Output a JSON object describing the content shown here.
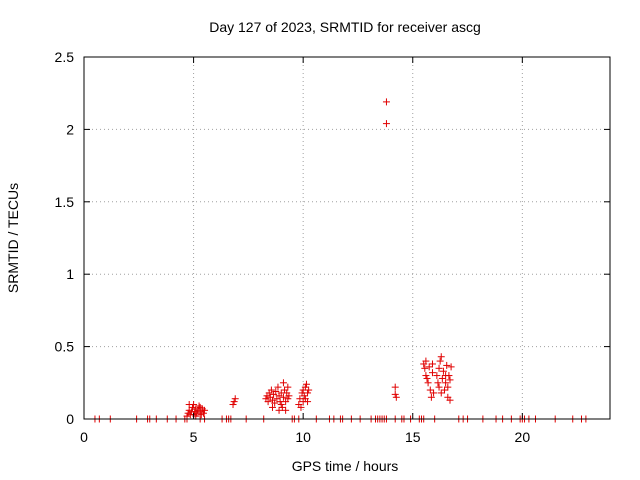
{
  "chart_data": {
    "type": "scatter",
    "title": "Day 127 of 2023, SRMTID for receiver ascg",
    "xlabel": "GPS time / hours",
    "ylabel": "SRMTID / TECUs",
    "xlim": [
      0,
      24
    ],
    "ylim": [
      0,
      2.5
    ],
    "xticks": [
      0,
      5,
      10,
      15,
      20
    ],
    "yticks": [
      0,
      0.5,
      1,
      1.5,
      2,
      2.5
    ],
    "xtick_labels": [
      "0",
      "5",
      "10",
      "15",
      "20"
    ],
    "ytick_labels": [
      "0",
      "0.5",
      "1",
      "1.5",
      "2",
      "2.5"
    ],
    "grid": true,
    "marker": "+",
    "marker_color": "#e00000",
    "series": [
      {
        "name": "SRMTID",
        "points": [
          [
            0.5,
            0
          ],
          [
            0.7,
            0
          ],
          [
            1.2,
            0
          ],
          [
            2.4,
            0
          ],
          [
            2.9,
            0
          ],
          [
            3.0,
            0
          ],
          [
            3.3,
            0
          ],
          [
            3.8,
            0
          ],
          [
            4.2,
            0
          ],
          [
            4.6,
            0
          ],
          [
            4.7,
            0
          ],
          [
            5.3,
            0
          ],
          [
            5.5,
            0
          ],
          [
            6.3,
            0
          ],
          [
            6.5,
            0
          ],
          [
            6.6,
            0
          ],
          [
            6.7,
            0
          ],
          [
            7.4,
            0
          ],
          [
            8.2,
            0
          ],
          [
            9.5,
            0
          ],
          [
            9.6,
            0
          ],
          [
            9.8,
            0
          ],
          [
            10.6,
            0
          ],
          [
            11.2,
            0
          ],
          [
            11.4,
            0
          ],
          [
            11.7,
            0
          ],
          [
            11.8,
            0
          ],
          [
            12.2,
            0
          ],
          [
            12.6,
            0
          ],
          [
            13.1,
            0
          ],
          [
            13.3,
            0
          ],
          [
            13.4,
            0
          ],
          [
            13.5,
            0
          ],
          [
            13.6,
            0
          ],
          [
            13.7,
            0
          ],
          [
            13.8,
            0
          ],
          [
            14.2,
            0
          ],
          [
            14.5,
            0
          ],
          [
            14.6,
            0
          ],
          [
            14.9,
            0
          ],
          [
            15.3,
            0
          ],
          [
            15.4,
            0
          ],
          [
            15.5,
            0
          ],
          [
            16.0,
            0
          ],
          [
            17.1,
            0
          ],
          [
            17.3,
            0
          ],
          [
            17.5,
            0
          ],
          [
            18.2,
            0
          ],
          [
            18.8,
            0
          ],
          [
            19.1,
            0
          ],
          [
            19.5,
            0
          ],
          [
            19.9,
            0
          ],
          [
            20.0,
            0
          ],
          [
            20.1,
            0
          ],
          [
            20.3,
            0
          ],
          [
            20.6,
            0
          ],
          [
            21.5,
            0
          ],
          [
            22.3,
            0
          ],
          [
            22.7,
            0
          ],
          [
            22.9,
            0
          ],
          [
            4.7,
            0.02
          ],
          [
            4.75,
            0.04
          ],
          [
            4.8,
            0.06
          ],
          [
            4.85,
            0.03
          ],
          [
            4.9,
            0.05
          ],
          [
            4.95,
            0.08
          ],
          [
            5.0,
            0.03
          ],
          [
            5.0,
            0.1
          ],
          [
            5.05,
            0.05
          ],
          [
            5.1,
            0.07
          ],
          [
            5.15,
            0.04
          ],
          [
            5.2,
            0.06
          ],
          [
            5.25,
            0.09
          ],
          [
            5.3,
            0.05
          ],
          [
            5.35,
            0.03
          ],
          [
            5.4,
            0.07
          ],
          [
            5.45,
            0.04
          ],
          [
            5.5,
            0.06
          ],
          [
            4.8,
            0.1
          ],
          [
            5.1,
            0.02
          ],
          [
            5.3,
            0.08
          ],
          [
            6.8,
            0.1
          ],
          [
            6.85,
            0.12
          ],
          [
            6.9,
            0.14
          ],
          [
            8.3,
            0.14
          ],
          [
            8.35,
            0.16
          ],
          [
            8.4,
            0.12
          ],
          [
            8.45,
            0.18
          ],
          [
            8.5,
            0.15
          ],
          [
            8.55,
            0.2
          ],
          [
            8.6,
            0.13
          ],
          [
            8.65,
            0.17
          ],
          [
            8.7,
            0.11
          ],
          [
            8.75,
            0.19
          ],
          [
            8.8,
            0.14
          ],
          [
            8.85,
            0.22
          ],
          [
            8.9,
            0.16
          ],
          [
            8.95,
            0.12
          ],
          [
            9.0,
            0.18
          ],
          [
            9.0,
            0.1
          ],
          [
            9.05,
            0.08
          ],
          [
            9.1,
            0.25
          ],
          [
            9.1,
            0.15
          ],
          [
            9.15,
            0.2
          ],
          [
            9.2,
            0.12
          ],
          [
            9.2,
            0.06
          ],
          [
            9.25,
            0.18
          ],
          [
            9.3,
            0.14
          ],
          [
            9.3,
            0.22
          ],
          [
            9.35,
            0.16
          ],
          [
            8.6,
            0.08
          ],
          [
            8.9,
            0.06
          ],
          [
            9.8,
            0.1
          ],
          [
            9.85,
            0.14
          ],
          [
            9.9,
            0.08
          ],
          [
            9.95,
            0.18
          ],
          [
            10.0,
            0.12
          ],
          [
            10.0,
            0.2
          ],
          [
            10.05,
            0.16
          ],
          [
            10.1,
            0.22
          ],
          [
            10.1,
            0.14
          ],
          [
            10.15,
            0.24
          ],
          [
            10.2,
            0.18
          ],
          [
            10.2,
            0.12
          ],
          [
            10.25,
            0.2
          ],
          [
            13.8,
            2.19
          ],
          [
            13.8,
            2.04
          ],
          [
            14.2,
            0.17
          ],
          [
            14.25,
            0.15
          ],
          [
            14.2,
            0.22
          ],
          [
            15.5,
            0.38
          ],
          [
            15.55,
            0.35
          ],
          [
            15.6,
            0.4
          ],
          [
            15.6,
            0.3
          ],
          [
            15.65,
            0.28
          ],
          [
            15.7,
            0.25
          ],
          [
            15.75,
            0.36
          ],
          [
            15.8,
            0.2
          ],
          [
            15.85,
            0.15
          ],
          [
            15.9,
            0.38
          ],
          [
            15.9,
            0.32
          ],
          [
            15.95,
            0.18
          ],
          [
            16.1,
            0.3
          ],
          [
            16.15,
            0.25
          ],
          [
            16.2,
            0.35
          ],
          [
            16.2,
            0.22
          ],
          [
            16.25,
            0.4
          ],
          [
            16.3,
            0.18
          ],
          [
            16.3,
            0.43
          ],
          [
            16.35,
            0.28
          ],
          [
            16.4,
            0.33
          ],
          [
            16.45,
            0.2
          ],
          [
            16.5,
            0.3
          ],
          [
            16.5,
            0.25
          ],
          [
            16.55,
            0.37
          ],
          [
            16.6,
            0.22
          ],
          [
            16.6,
            0.15
          ],
          [
            16.65,
            0.3
          ],
          [
            16.7,
            0.13
          ],
          [
            16.75,
            0.36
          ],
          [
            16.7,
            0.27
          ]
        ]
      }
    ]
  }
}
